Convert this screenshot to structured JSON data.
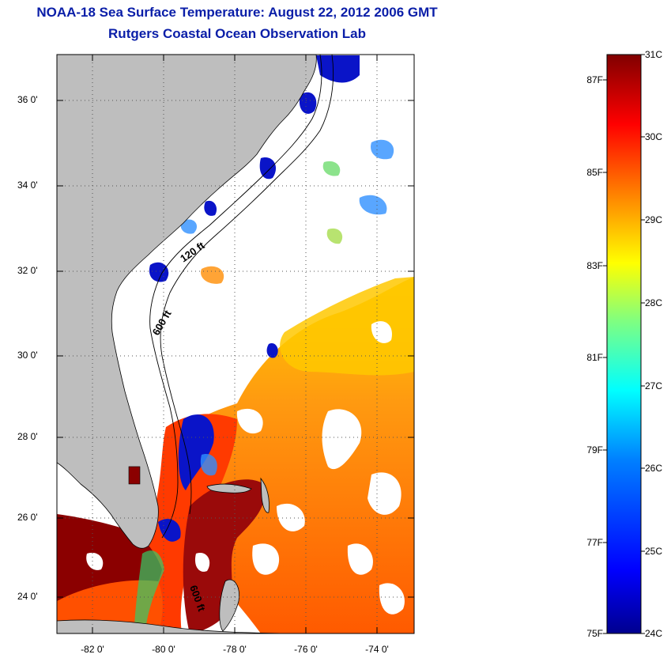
{
  "title": {
    "line1": "NOAA-18 Sea Surface Temperature:  August 22, 2012 2006 GMT",
    "line2": "Rutgers Coastal Ocean Observation Lab"
  },
  "map": {
    "lon_range": [
      -83,
      -73
    ],
    "lat_range": [
      23,
      37
    ],
    "land_color": "#bebebe",
    "cloud_color": "#ffffff",
    "lat_labels": [
      "36 0'",
      "34 0'",
      "32 0'",
      "30 0'",
      "28 0'",
      "26 0'",
      "24 0'"
    ],
    "lon_labels": [
      "-82 0'",
      "-80 0'",
      "-78 0'",
      "-76 0'",
      "-74 0'"
    ],
    "isobaths": [
      {
        "label": "120 ft"
      },
      {
        "label": "600 ft"
      },
      {
        "label": "600 ft"
      }
    ]
  },
  "colorbar": {
    "range_c": [
      24,
      31
    ],
    "range_f": [
      75,
      88
    ],
    "celsius_labels": [
      "31C",
      "30C",
      "29C",
      "28C",
      "27C",
      "26C",
      "25C",
      "24C"
    ],
    "fahrenheit_labels": [
      "87F",
      "85F",
      "83F",
      "81F",
      "79F",
      "77F",
      "75F"
    ],
    "colors": [
      "#00008f",
      "#0000ff",
      "#0080ff",
      "#00ffff",
      "#80ff80",
      "#ffff00",
      "#ff8000",
      "#ff0000",
      "#800000"
    ]
  }
}
